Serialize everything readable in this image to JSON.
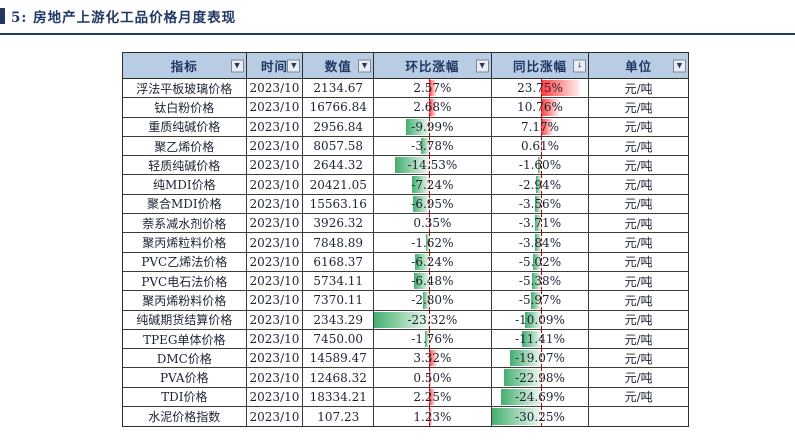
{
  "title": {
    "text": "5: 房地产上游化工品价格月度表现"
  },
  "table": {
    "columns": [
      {
        "label": "指标",
        "filter": "dropdown"
      },
      {
        "label": "时间",
        "filter": "dropdown"
      },
      {
        "label": "数值",
        "filter": "dropdown"
      },
      {
        "label": "环比涨幅",
        "filter": "dropdown"
      },
      {
        "label": "同比涨幅",
        "filter": "sort-desc"
      },
      {
        "label": "单位",
        "filter": "dropdown"
      }
    ],
    "rows": [
      [
        "浮法平板玻璃价格",
        "2023/10",
        "2134.67",
        "2.57%",
        "23.75%",
        "元/吨"
      ],
      [
        "钛白粉价格",
        "2023/10",
        "16766.84",
        "2.68%",
        "10.76%",
        "元/吨"
      ],
      [
        "重质纯碱价格",
        "2023/10",
        "2956.84",
        "-9.99%",
        "7.17%",
        "元/吨"
      ],
      [
        "聚乙烯价格",
        "2023/10",
        "8057.58",
        "-3.78%",
        "0.61%",
        "元/吨"
      ],
      [
        "轻质纯碱价格",
        "2023/10",
        "2644.32",
        "-14.53%",
        "-1.60%",
        "元/吨"
      ],
      [
        "纯MDI价格",
        "2023/10",
        "20421.05",
        "-7.24%",
        "-2.94%",
        "元/吨"
      ],
      [
        "聚合MDI价格",
        "2023/10",
        "15563.16",
        "-6.95%",
        "-3.56%",
        "元/吨"
      ],
      [
        "萘系减水剂价格",
        "2023/10",
        "3926.32",
        "0.35%",
        "-3.71%",
        "元/吨"
      ],
      [
        "聚丙烯粒料价格",
        "2023/10",
        "7848.89",
        "-1.62%",
        "-3.84%",
        "元/吨"
      ],
      [
        "PVC乙烯法价格",
        "2023/10",
        "6168.37",
        "-6.24%",
        "-5.02%",
        "元/吨"
      ],
      [
        "PVC电石法价格",
        "2023/10",
        "5734.11",
        "-6.48%",
        "-5.38%",
        "元/吨"
      ],
      [
        "聚丙烯粉料价格",
        "2023/10",
        "7370.11",
        "-2.80%",
        "-5.97%",
        "元/吨"
      ],
      [
        "纯碱期货结算价格",
        "2023/10",
        "2343.29",
        "-23.32%",
        "-10.09%",
        "元/吨"
      ],
      [
        "TPEG单体价格",
        "2023/10",
        "7450.00",
        "-1.76%",
        "-11.41%",
        "元/吨"
      ],
      [
        "DMC价格",
        "2023/10",
        "14589.47",
        "3.32%",
        "-19.07%",
        "元/吨"
      ],
      [
        "PVA价格",
        "2023/10",
        "12468.32",
        "0.50%",
        "-22.98%",
        "元/吨"
      ],
      [
        "TDI价格",
        "2023/10",
        "18334.21",
        "2.25%",
        "-24.69%",
        "元/吨"
      ],
      [
        "水泥价格指数",
        "2023/10",
        "107.23",
        "1.23%",
        "-30.25%",
        ""
      ]
    ]
  },
  "icons": {
    "filter_dropdown": "▼",
    "sort_desc": "↓"
  },
  "colors": {
    "title": "#1F3864",
    "header_bg": "#B8CCE4",
    "header_text": "#1F3864",
    "bar_positive": "#FF3A3A",
    "bar_negative": "#43AF6F",
    "bar_axis": "#C00000"
  }
}
